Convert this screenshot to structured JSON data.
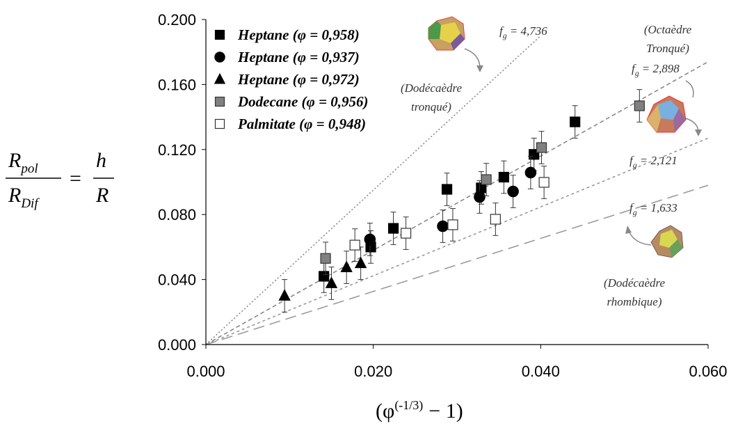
{
  "chart_data": {
    "type": "scatter",
    "xlim": [
      0,
      0.06
    ],
    "ylim": [
      0,
      0.2
    ],
    "xticks": [
      {
        "value": 0,
        "label": "0.000"
      },
      {
        "value": 0.02,
        "label": "0.020"
      },
      {
        "value": 0.04,
        "label": "0.040"
      },
      {
        "value": 0.06,
        "label": "0.060"
      }
    ],
    "yticks": [
      {
        "value": 0,
        "label": "0.000"
      },
      {
        "value": 0.04,
        "label": "0.040"
      },
      {
        "value": 0.08,
        "label": "0.080"
      },
      {
        "value": 0.12,
        "label": "0.120"
      },
      {
        "value": 0.16,
        "label": "0.160"
      },
      {
        "value": 0.2,
        "label": "0.200"
      }
    ],
    "grid": false,
    "legend": "upper left",
    "xlabel": {
      "base": "(φ",
      "sup": "(-1/3)",
      "rest": "− 1)"
    },
    "ylabel": {
      "num1": "R",
      "num1_sub": "pol",
      "den1": "R",
      "den1_sub": "Dif",
      "equals": "=",
      "num2": "h",
      "den2": "R"
    },
    "series": [
      {
        "name": "Heptane (φ = 0,958)",
        "marker": "square",
        "color": "#000000",
        "edge": "#000000",
        "x": [
          0.0141,
          0.0197,
          0.0224,
          0.0288,
          0.0329,
          0.0356,
          0.0392,
          0.0441
        ],
        "values": [
          0.042,
          0.06,
          0.0715,
          0.0955,
          0.0964,
          0.103,
          0.117,
          0.137
        ],
        "errors": [
          0.01,
          0.01,
          0.01,
          0.01,
          0.01,
          0.01,
          0.01,
          0.01
        ]
      },
      {
        "name": "Heptane (φ = 0,937)",
        "marker": "circle",
        "color": "#000000",
        "edge": "#000000",
        "x": [
          0.0196,
          0.0283,
          0.0327,
          0.0367,
          0.0388
        ],
        "values": [
          0.0647,
          0.0728,
          0.0908,
          0.0942,
          0.1058
        ],
        "errors": [
          0.01,
          0.01,
          0.01,
          0.01,
          0.01
        ]
      },
      {
        "name": "Heptane (φ = 0,972)",
        "marker": "triangle",
        "color": "#000000",
        "edge": "#000000",
        "x": [
          0.0094,
          0.015,
          0.0168,
          0.0185
        ],
        "values": [
          0.03,
          0.0377,
          0.0475,
          0.05
        ],
        "errors": [
          0.01,
          0.01,
          0.01,
          0.01
        ]
      },
      {
        "name": "Dodecane (φ = 0,956)",
        "marker": "square",
        "color": "#808080",
        "edge": "#333333",
        "x": [
          0.0143,
          0.0335,
          0.0401,
          0.0518
        ],
        "values": [
          0.053,
          0.1015,
          0.1212,
          0.1469
        ],
        "errors": [
          0.01,
          0.01,
          0.01,
          0.01
        ]
      },
      {
        "name": "Palmitate (φ = 0,948)",
        "marker": "square",
        "color": "#ffffff",
        "edge": "#333333",
        "x": [
          0.0178,
          0.0239,
          0.0295,
          0.0346,
          0.0404
        ],
        "values": [
          0.0612,
          0.0685,
          0.0737,
          0.0771,
          0.0998
        ],
        "errors": [
          0.01,
          0.01,
          0.01,
          0.01,
          0.01
        ]
      }
    ],
    "fit_lines": [
      {
        "style": "dotted",
        "color": "#888888",
        "x": [
          0,
          0.04
        ],
        "y": [
          0,
          0.19
        ],
        "label": {
          "f": "f",
          "sub": "g",
          "text": "= 4,736"
        }
      },
      {
        "style": "dashed",
        "color": "#888888",
        "x": [
          0,
          0.06
        ],
        "y": [
          0,
          0.174
        ],
        "label": {
          "f": "f",
          "sub": "g",
          "text": "= 2,898"
        }
      },
      {
        "style": "shortdash",
        "color": "#999999",
        "x": [
          0,
          0.06
        ],
        "y": [
          0,
          0.127
        ],
        "label": {
          "f": "f",
          "sub": "g",
          "text": "= 2,121"
        }
      },
      {
        "style": "longdash",
        "color": "#999999",
        "x": [
          0,
          0.06
        ],
        "y": [
          0,
          0.098
        ],
        "label": {
          "f": "f",
          "sub": "g",
          "text": "= 1,633"
        }
      }
    ],
    "annotations": [
      {
        "lines": [
          "(Dodécaèdre",
          "tronqué)"
        ]
      },
      {
        "lines": [
          "(Octaèdre",
          "Tronqué)"
        ]
      },
      {
        "lines": [
          "(Dodécaèdre",
          "rhombique)"
        ]
      }
    ]
  }
}
